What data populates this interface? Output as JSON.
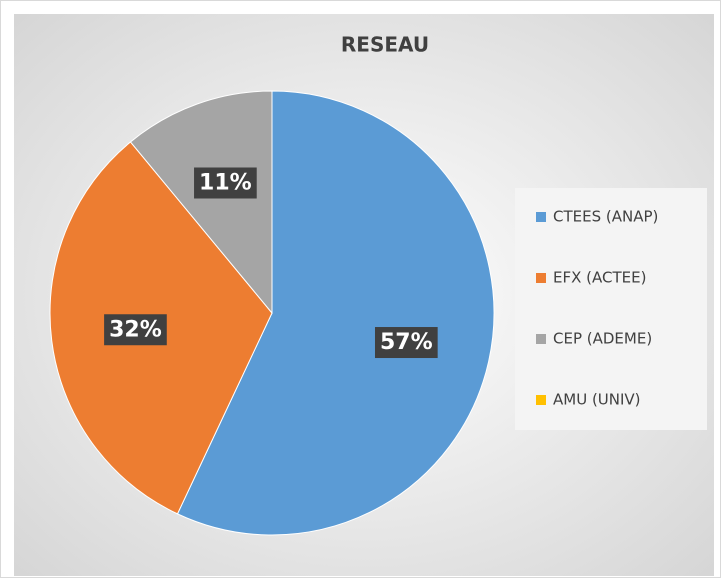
{
  "chart_data": {
    "type": "pie",
    "title": "RESEAU",
    "categories": [
      "CTEES (ANAP)",
      "EFX (ACTEE)",
      "CEP (ADEME)",
      "AMU (UNIV)"
    ],
    "values": [
      57,
      32,
      11,
      0
    ],
    "value_labels": [
      "57%",
      "32%",
      "11%",
      null
    ],
    "colors": [
      "#5b9bd5",
      "#ed7d31",
      "#a5a5a5",
      "#ffc000"
    ],
    "legend": "right"
  }
}
